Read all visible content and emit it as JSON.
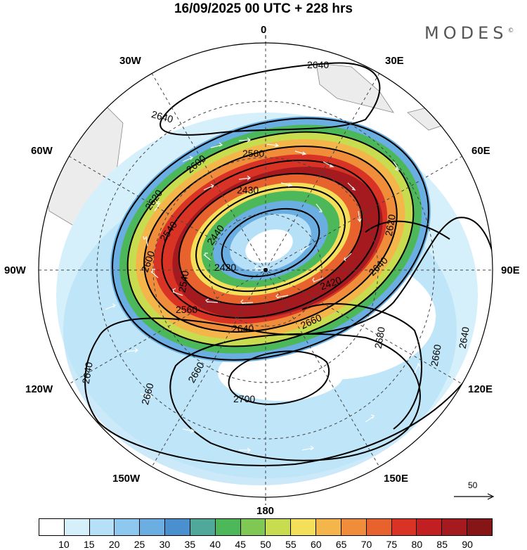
{
  "title": "16/09/2025  00 UTC  + 228 hrs",
  "brand": "MODES",
  "brand_mark": "©",
  "longitude_labels": {
    "lon_0": "0",
    "lon_30e": "30E",
    "lon_60e": "60E",
    "lon_90e": "90E",
    "lon_120e": "120E",
    "lon_150e": "150E",
    "lon_180": "180",
    "lon_150w": "150W",
    "lon_120w": "120W",
    "lon_90w": "90W",
    "lon_60w": "60W",
    "lon_30w": "30W"
  },
  "contour_labels": {
    "c1": "2640",
    "c2": "2640",
    "c3": "2580",
    "c4": "2600",
    "c5": "2620",
    "c6": "2430",
    "c7": "2540",
    "c8": "2440",
    "c9": "2600",
    "c10": "2620",
    "c11": "2420",
    "c12": "2540",
    "c13": "2420",
    "c14": "2660",
    "c15": "2640",
    "c16": "2680",
    "c17": "2660",
    "c18": "2640",
    "c19": "2660",
    "c20": "2700",
    "c21": "2640",
    "c22": "2640",
    "c23": "2660",
    "c24": "2560"
  },
  "reference_vector_label": "50",
  "colorbar": {
    "labels": [
      "10",
      "15",
      "20",
      "25",
      "30",
      "35",
      "40",
      "45",
      "50",
      "55",
      "60",
      "65",
      "70",
      "75",
      "80",
      "85",
      "90"
    ],
    "colors": [
      "#ffffff",
      "#d6f0fb",
      "#b5e0f7",
      "#8ec8ee",
      "#6aaee2",
      "#4a90cf",
      "#4fa89a",
      "#4cb85a",
      "#7fc854",
      "#c8dc50",
      "#f4df5a",
      "#f4b64a",
      "#ef8d3b",
      "#e8622e",
      "#d93325",
      "#c21f22",
      "#a51a1f",
      "#861518"
    ]
  }
}
